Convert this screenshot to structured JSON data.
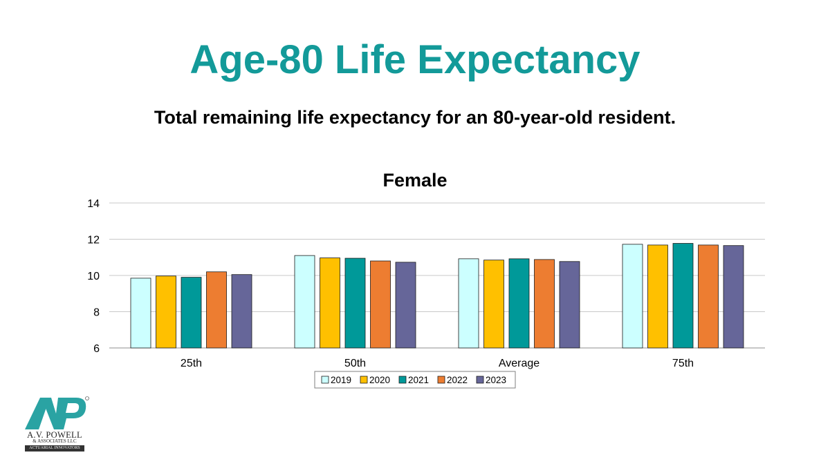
{
  "slide": {
    "title": "Age-80 Life Expectancy",
    "subtitle": "Total remaining life expectancy for an 80-year-old resident.",
    "title_color": "#139a99"
  },
  "logo": {
    "name": "A.V. POWELL",
    "sub": "& ASSOCIATES LLC",
    "tagline": "ACTUARIAL INNOVATORS",
    "mark_color": "#2aa3a3"
  },
  "chart_data": {
    "type": "bar",
    "title": "Female",
    "xlabel": "",
    "ylabel": "",
    "categories": [
      "25th",
      "50th",
      "Average",
      "75th"
    ],
    "series": [
      {
        "name": "2019",
        "color": "#ccffff",
        "values": [
          9.85,
          11.1,
          10.92,
          11.72
        ]
      },
      {
        "name": "2020",
        "color": "#ffc000",
        "values": [
          9.97,
          10.97,
          10.85,
          11.68
        ]
      },
      {
        "name": "2021",
        "color": "#009999",
        "values": [
          9.9,
          10.95,
          10.92,
          11.77
        ]
      },
      {
        "name": "2022",
        "color": "#ed7d31",
        "values": [
          10.2,
          10.8,
          10.88,
          11.68
        ]
      },
      {
        "name": "2023",
        "color": "#666699",
        "values": [
          10.05,
          10.73,
          10.77,
          11.65
        ]
      }
    ],
    "ylim": [
      6,
      14
    ],
    "yticks": [
      6,
      8,
      10,
      12,
      14
    ],
    "grid": true,
    "legend": "bottom"
  }
}
